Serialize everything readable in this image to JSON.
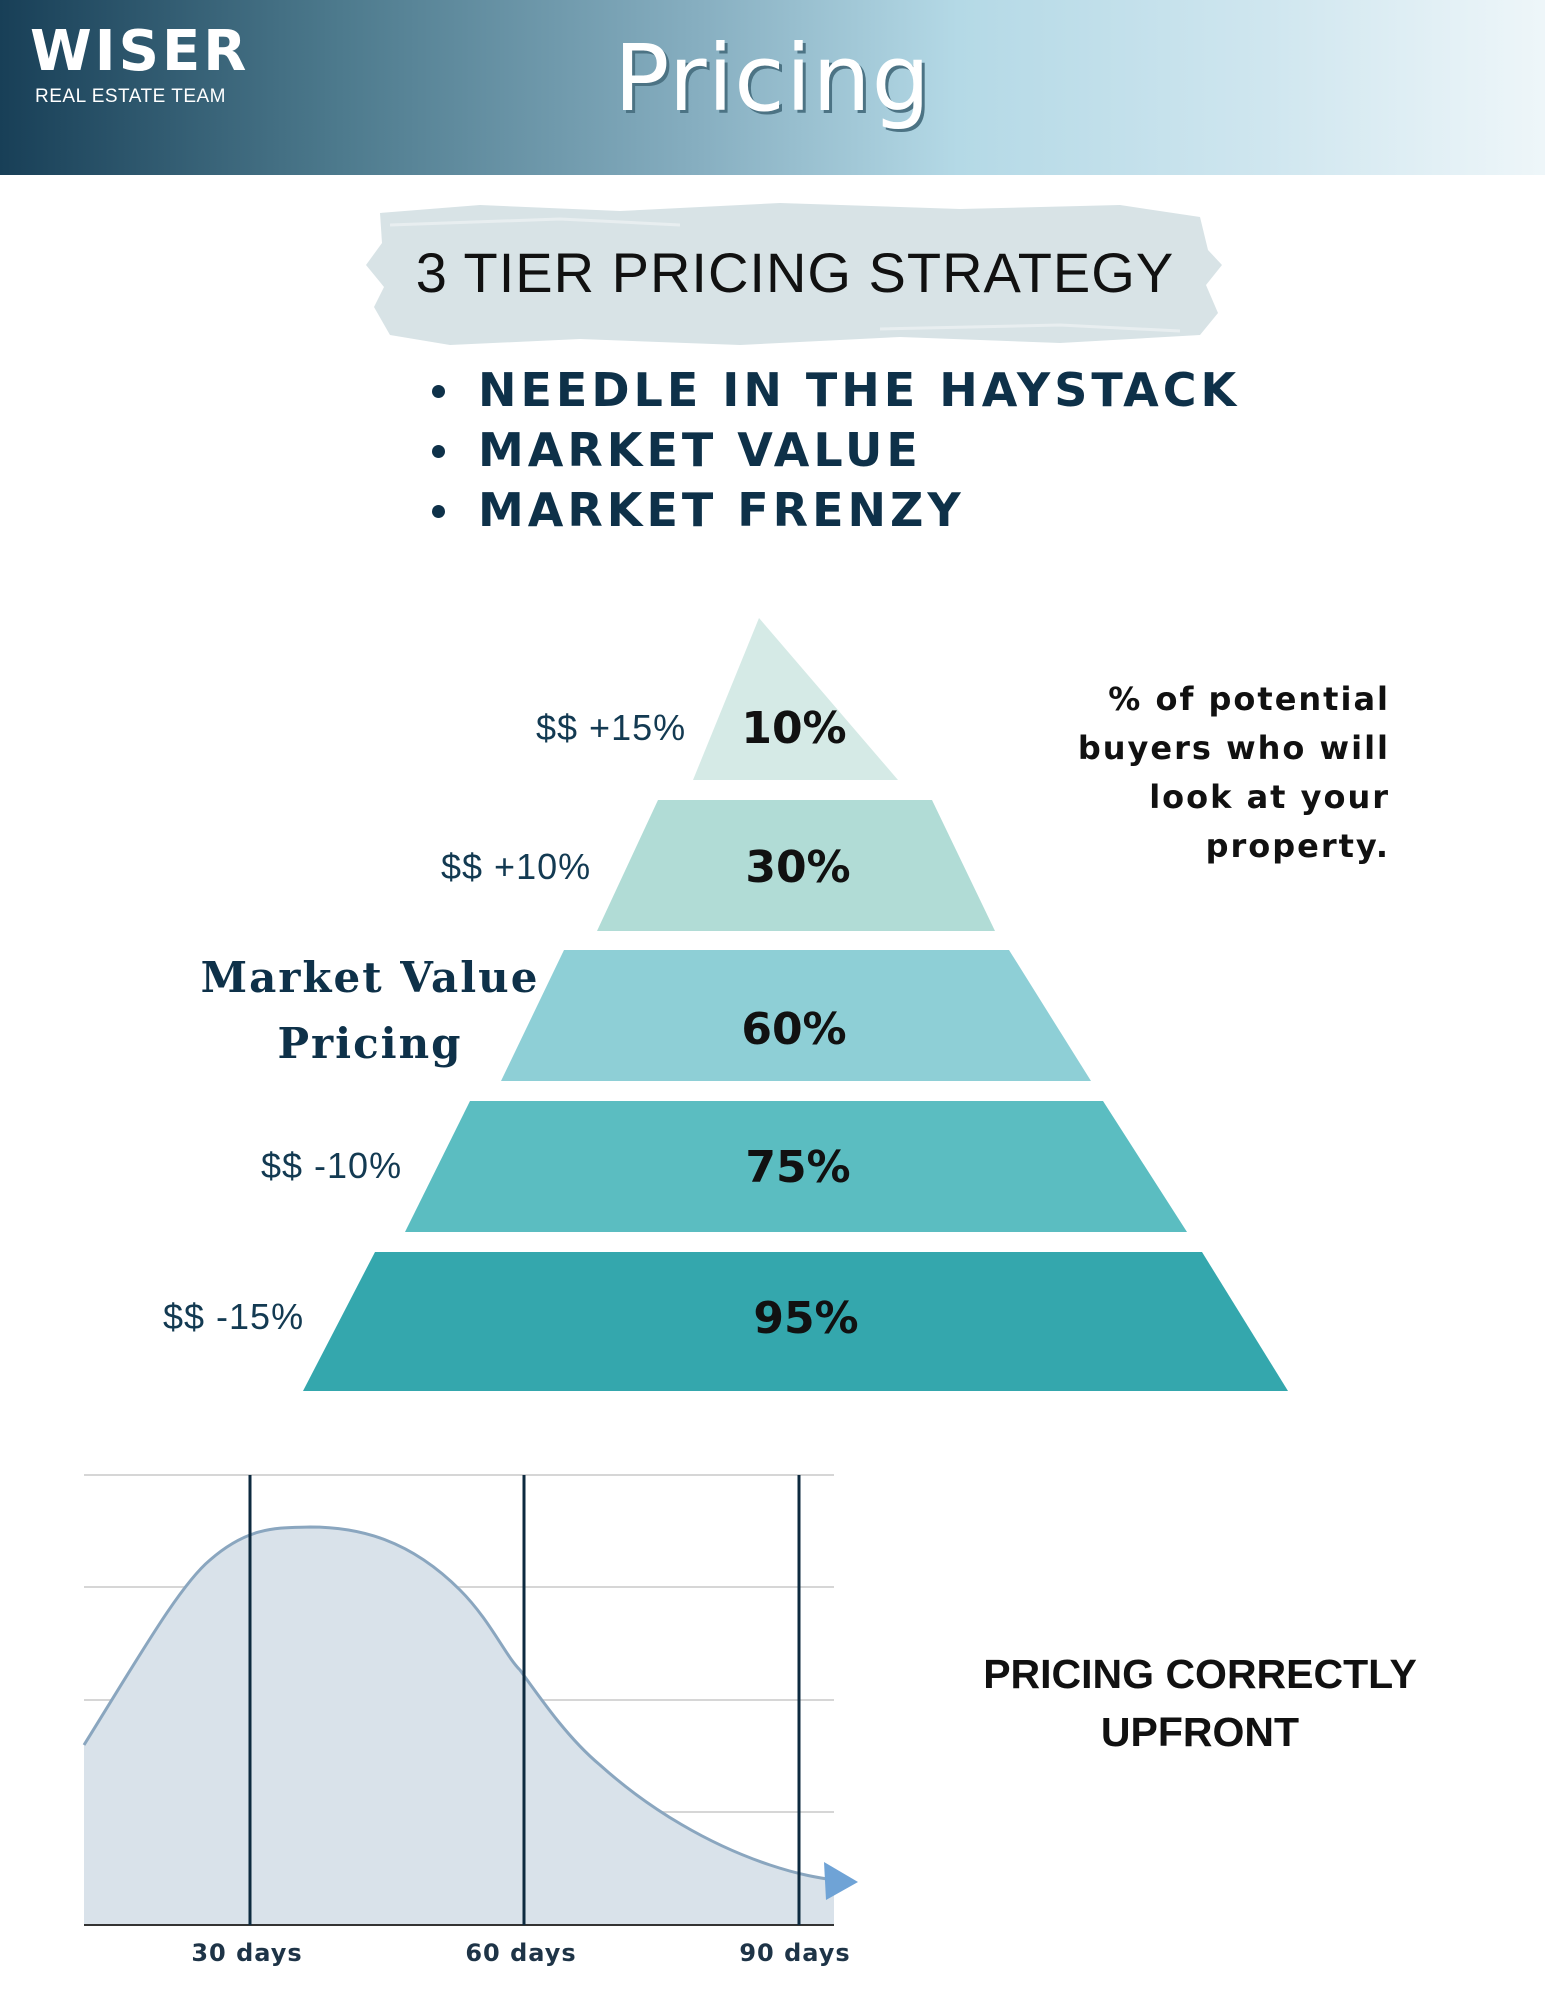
{
  "header": {
    "logo_main": "WISER",
    "logo_sub": "REAL ESTATE TEAM",
    "title": "Pricing"
  },
  "strategy": {
    "title": "3 TIER PRICING STRATEGY",
    "tiers": [
      "NEEDLE IN THE HAYSTACK",
      "MARKET VALUE",
      "MARKET FRENZY"
    ]
  },
  "pyramid": {
    "levels": [
      {
        "price": "$$ +15%",
        "percent": "10%",
        "color": "#d5eae6"
      },
      {
        "price": "$$ +10%",
        "percent": "30%",
        "color": "#b1dcd6"
      },
      {
        "price": "",
        "percent": "60%",
        "color": "#8ecfd6"
      },
      {
        "price": "$$ -10%",
        "percent": "75%",
        "color": "#5bbdc1"
      },
      {
        "price": "$$ -15%",
        "percent": "95%",
        "color": "#34a7ad"
      }
    ],
    "market_value_label": [
      "Market Value",
      "Pricing"
    ],
    "buyers_note": [
      "% of potential",
      "buyers who will",
      "look at your",
      "property."
    ]
  },
  "chart_data": {
    "type": "area",
    "x_tick_labels": [
      "30 days",
      "60 days",
      "90 days"
    ],
    "fill_color": "#d9e2ea",
    "line_color": "#8aa6bf",
    "arrow_color": "#6fa3d6",
    "marker_color": "#0d2a3f"
  },
  "callout": {
    "line1": "PRICING CORRECTLY",
    "line2": "UPFRONT"
  }
}
